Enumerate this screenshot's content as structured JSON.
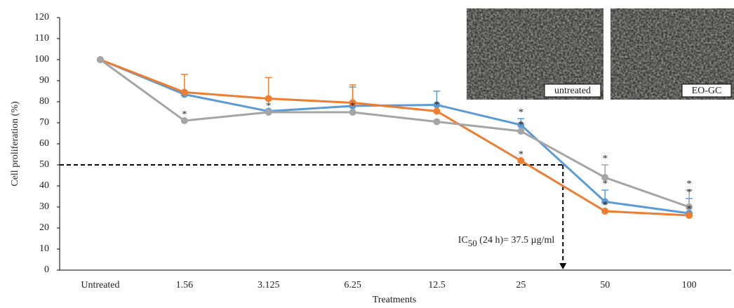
{
  "chart_data": {
    "type": "line",
    "y_label": "Cell proliferation (%)",
    "x_label": "Treatments",
    "categories": [
      "Untreated",
      "1.56",
      "3.125",
      "6.25",
      "12.5",
      "25",
      "50",
      "100"
    ],
    "ylim": [
      0,
      120
    ],
    "yticks": [
      0,
      10,
      20,
      30,
      40,
      50,
      60,
      70,
      80,
      90,
      100,
      110,
      120
    ],
    "series": [
      {
        "color": "#5b9bd5",
        "values": [
          100,
          83.5,
          75.5,
          78,
          78.5,
          69,
          32.5,
          27
        ],
        "errors": [
          null,
          null,
          null,
          9,
          6.5,
          3,
          5.5,
          7
        ],
        "significance": [
          null,
          null,
          null,
          null,
          null,
          "*",
          "*",
          "*"
        ]
      },
      {
        "color": "#ed7d31",
        "values": [
          100,
          84.5,
          81.5,
          79.5,
          75.5,
          52,
          28,
          26
        ],
        "errors": [
          null,
          8.5,
          10,
          8.5,
          null,
          null,
          null,
          null
        ],
        "significance": [
          null,
          null,
          null,
          null,
          "*",
          "*",
          "*",
          "*"
        ]
      },
      {
        "color": "#a5a5a5",
        "values": [
          100,
          71,
          75,
          75,
          70.5,
          66,
          44,
          30
        ],
        "errors": [
          null,
          null,
          null,
          null,
          null,
          null,
          6,
          8
        ],
        "significance": [
          null,
          "*",
          "*",
          "*",
          null,
          "*",
          "*",
          "*"
        ]
      }
    ],
    "threshold": 50,
    "ic50_label": {
      "prefix": "IC",
      "subscript": "50",
      "suffix": " (24 h)= 37.5 µg/ml"
    },
    "insets": [
      "untreated",
      "EO-GC"
    ]
  }
}
